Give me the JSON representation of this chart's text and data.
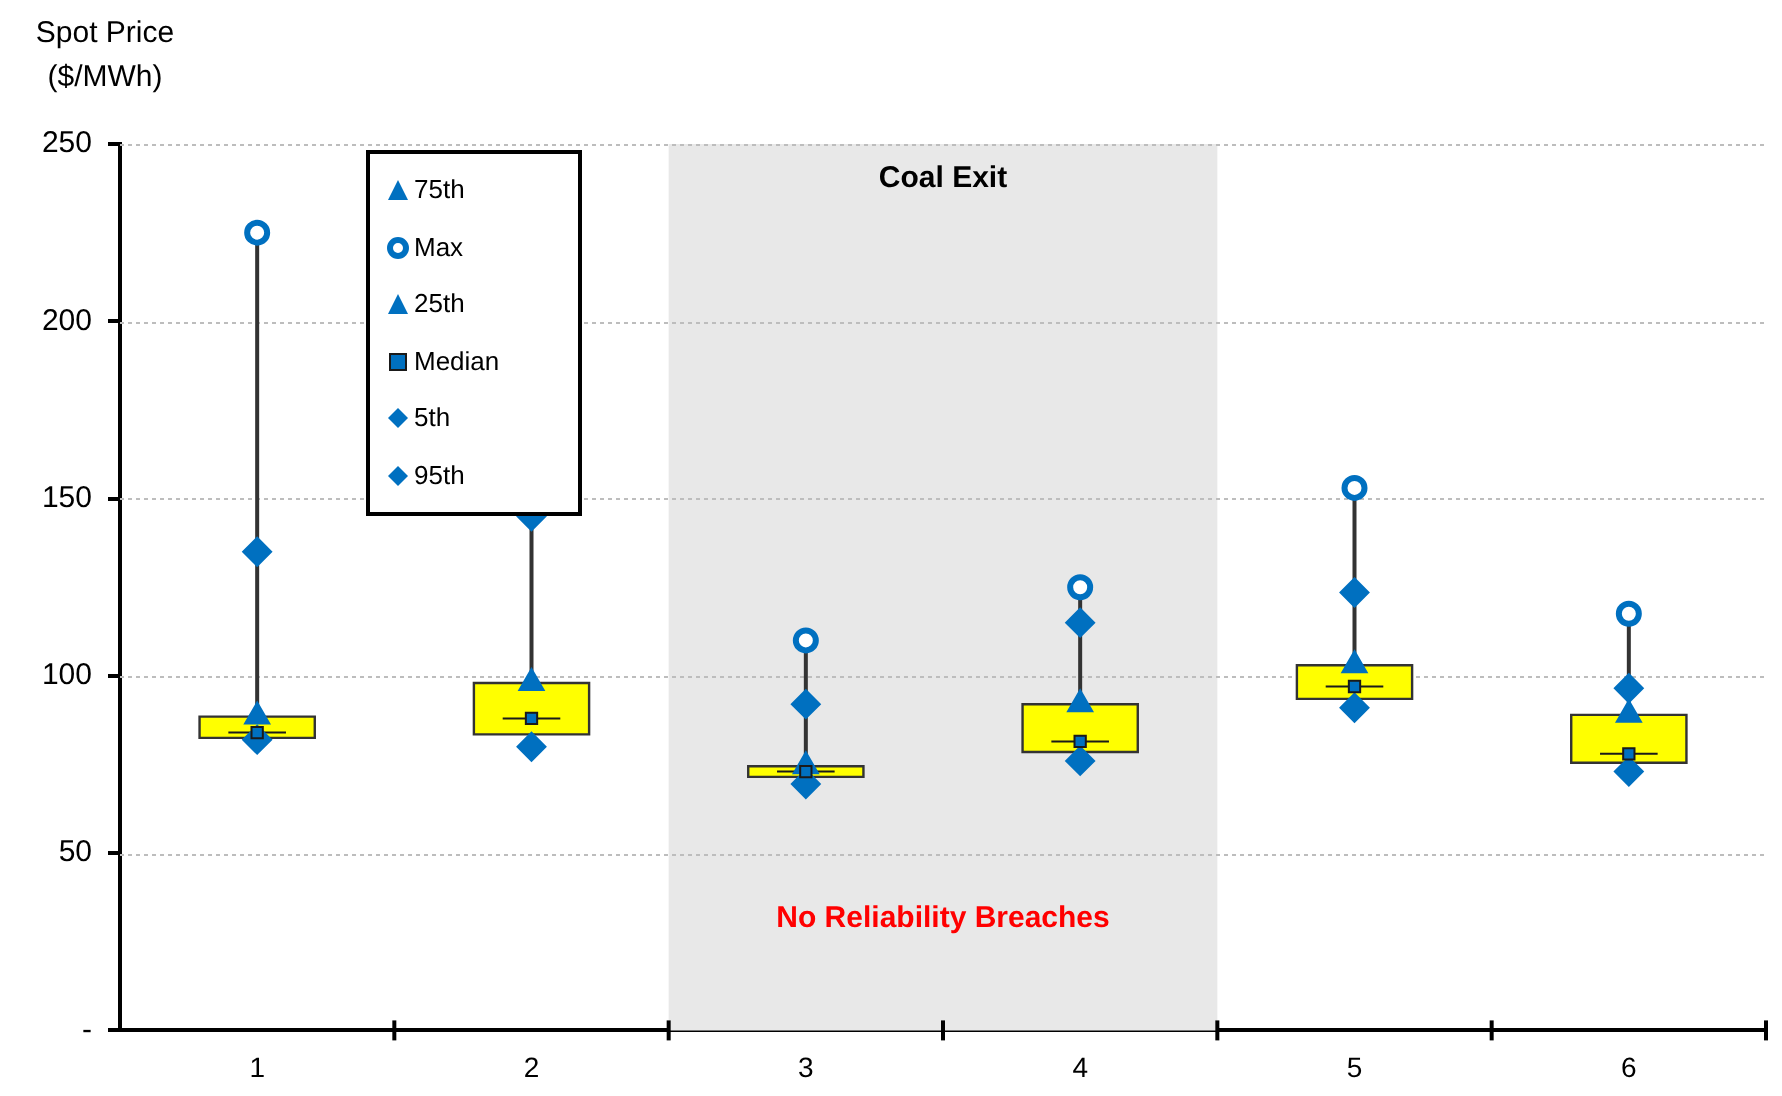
{
  "chart_data": {
    "type": "box",
    "ylabel": "Spot Price ($/MWh)",
    "categories": [
      "1",
      "2",
      "3",
      "4",
      "5",
      "6"
    ],
    "ylim": [
      0,
      250
    ],
    "yticks": [
      {
        "value": 0,
        "label": "-"
      },
      50,
      100,
      150,
      200,
      250
    ],
    "grid": "y",
    "legend": "top left",
    "boxes": [
      {
        "low": 82,
        "q1": 82.5,
        "median": 84,
        "q3": 88.5,
        "high": 225
      },
      {
        "low": 80,
        "q1": 83.5,
        "median": 88,
        "q3": 98,
        "high": null
      },
      {
        "low": 69.5,
        "q1": 71.5,
        "median": 73,
        "q3": 74.5,
        "high": 110
      },
      {
        "low": 76,
        "q1": 78.5,
        "median": 81.5,
        "q3": 92,
        "high": 125
      },
      {
        "low": 91,
        "q1": 93.5,
        "median": 97,
        "q3": 103,
        "high": 153
      },
      {
        "low": 73,
        "q1": 75.5,
        "median": 78,
        "q3": 89,
        "high": 117.5
      }
    ],
    "series": [
      {
        "name": "75th",
        "type": "scatter",
        "marker": "triangle",
        "color": "#0070c0",
        "x": [
          "1",
          "2",
          "3",
          "4",
          "5",
          "6"
        ],
        "values": [
          88.5,
          98,
          74.5,
          92,
          103,
          89
        ]
      },
      {
        "name": "Max",
        "type": "scatter",
        "marker": "circle",
        "color": "#0070c0",
        "x": [
          "1",
          "2",
          "3",
          "4",
          "5",
          "6"
        ],
        "values": [
          225,
          null,
          110,
          125,
          153,
          117.5
        ]
      },
      {
        "name": "25th",
        "type": "scatter",
        "marker": "triangle",
        "color": "#0070c0",
        "x": [
          "1",
          "2",
          "3",
          "4",
          "5",
          "6"
        ],
        "values": [
          null,
          null,
          null,
          null,
          null,
          null
        ]
      },
      {
        "name": "Median",
        "type": "scatter",
        "marker": "square",
        "color": "#0070c0",
        "x": [
          "1",
          "2",
          "3",
          "4",
          "5",
          "6"
        ],
        "values": [
          84,
          88,
          73,
          81.5,
          97,
          78
        ]
      },
      {
        "name": "5th",
        "type": "scatter",
        "marker": "diamond",
        "color": "#0070c0",
        "x": [
          "1",
          "2",
          "3",
          "4",
          "5",
          "6"
        ],
        "values": [
          82,
          80,
          69.5,
          76,
          91,
          73
        ]
      },
      {
        "name": "95th",
        "type": "scatter",
        "marker": "diamond",
        "color": "#0070c0",
        "x": [
          "1",
          "2",
          "3",
          "4",
          "5",
          "6"
        ],
        "values": [
          135,
          145,
          92,
          115,
          123.5,
          96.5
        ]
      }
    ],
    "bands": [
      {
        "axis": "x",
        "from": "3",
        "to": "4",
        "label": "Coal Exit",
        "color": "#e8e8e8"
      }
    ],
    "annotations": [
      "No Reliability Breaches"
    ]
  }
}
